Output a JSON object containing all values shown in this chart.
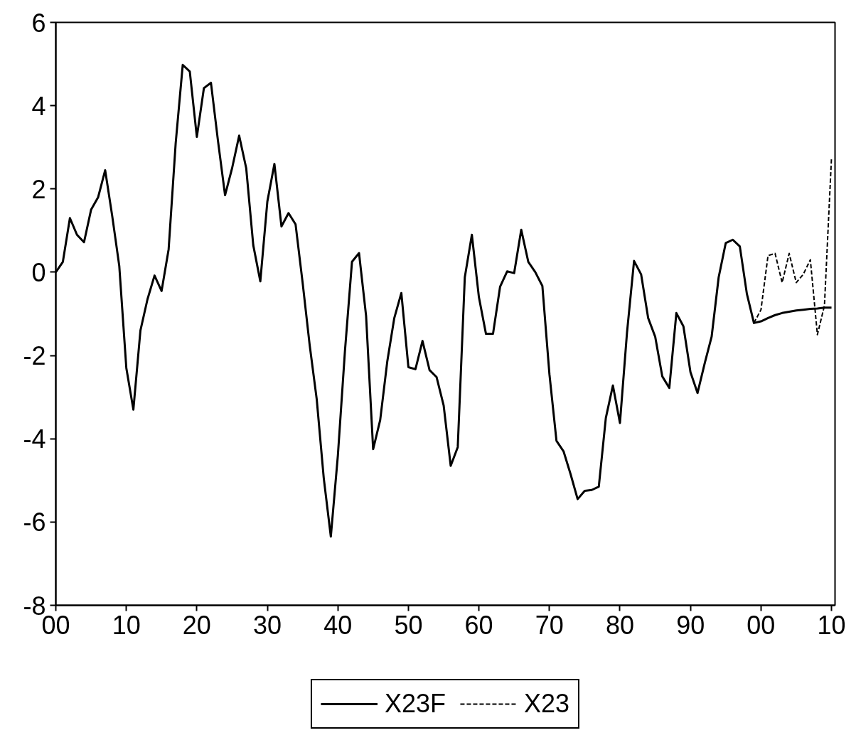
{
  "chart_data": {
    "type": "line",
    "x": [
      "1900",
      "1901",
      "1902",
      "1903",
      "1904",
      "1905",
      "1906",
      "1907",
      "1908",
      "1909",
      "1910",
      "1911",
      "1912",
      "1913",
      "1914",
      "1915",
      "1916",
      "1917",
      "1918",
      "1919",
      "1920",
      "1921",
      "1922",
      "1923",
      "1924",
      "1925",
      "1926",
      "1927",
      "1928",
      "1929",
      "1930",
      "1931",
      "1932",
      "1933",
      "1934",
      "1935",
      "1936",
      "1937",
      "1938",
      "1939",
      "1940",
      "1941",
      "1942",
      "1943",
      "1944",
      "1945",
      "1946",
      "1947",
      "1948",
      "1949",
      "1950",
      "1951",
      "1952",
      "1953",
      "1954",
      "1955",
      "1956",
      "1957",
      "1958",
      "1959",
      "1960",
      "1961",
      "1962",
      "1963",
      "1964",
      "1965",
      "1966",
      "1967",
      "1968",
      "1969",
      "1970",
      "1971",
      "1972",
      "1973",
      "1974",
      "1975",
      "1976",
      "1977",
      "1978",
      "1979",
      "1980",
      "1981",
      "1982",
      "1983",
      "1984",
      "1985",
      "1986",
      "1987",
      "1988",
      "1989",
      "1990",
      "1991",
      "1992",
      "1993",
      "1994",
      "1995",
      "1996",
      "1997",
      "1998",
      "1999",
      "2000",
      "2001",
      "2002",
      "2003",
      "2004",
      "2005",
      "2006",
      "2007",
      "2008",
      "2009",
      "2010"
    ],
    "series": [
      {
        "name": "X23F",
        "color": "#000000",
        "line_style": "solid",
        "values": [
          0.0,
          0.25,
          1.3,
          0.9,
          0.72,
          1.5,
          1.8,
          2.45,
          1.35,
          0.15,
          -2.3,
          -3.3,
          -1.4,
          -0.65,
          -0.08,
          -0.45,
          0.55,
          3.1,
          4.98,
          4.82,
          3.25,
          4.42,
          4.55,
          3.15,
          1.85,
          2.5,
          3.28,
          2.5,
          0.65,
          -0.22,
          1.7,
          2.6,
          1.1,
          1.42,
          1.15,
          -0.25,
          -1.75,
          -3.05,
          -4.95,
          -6.35,
          -4.4,
          -1.9,
          0.25,
          0.46,
          -1.05,
          -4.25,
          -3.55,
          -2.15,
          -1.1,
          -0.5,
          -2.28,
          -2.33,
          -1.65,
          -2.35,
          -2.52,
          -3.2,
          -4.65,
          -4.2,
          -0.12,
          0.9,
          -0.6,
          -1.48,
          -1.48,
          -0.35,
          0.02,
          -0.02,
          1.02,
          0.25,
          0.0,
          -0.33,
          -2.45,
          -4.05,
          -4.3,
          -4.85,
          -5.45,
          -5.25,
          -5.23,
          -5.15,
          -3.5,
          -2.72,
          -3.62,
          -1.45,
          0.27,
          -0.05,
          -1.1,
          -1.55,
          -2.5,
          -2.78,
          -0.98,
          -1.3,
          -2.4,
          -2.9,
          -2.2,
          -1.55,
          -0.12,
          0.7,
          0.78,
          0.62,
          -0.52,
          -1.22,
          -1.18,
          -1.1,
          -1.03,
          -0.98,
          -0.95,
          -0.92,
          -0.9,
          -0.88,
          -0.87,
          -0.85,
          -0.85
        ]
      },
      {
        "name": "X23",
        "color": "#000000",
        "line_style": "dashed",
        "x": [
          "1999",
          "2000",
          "2001",
          "2002",
          "2003",
          "2004",
          "2005",
          "2006",
          "2007",
          "2008",
          "2009",
          "2010"
        ],
        "values": [
          -1.22,
          -0.9,
          0.4,
          0.45,
          -0.25,
          0.45,
          -0.25,
          -0.05,
          0.3,
          -1.5,
          -0.8,
          2.75
        ]
      }
    ],
    "xlim": [
      "1900",
      "2010-07"
    ],
    "xticks": [
      {
        "value": "1900",
        "label": "00"
      },
      {
        "value": "1910",
        "label": "10"
      },
      {
        "value": "1920",
        "label": "20"
      },
      {
        "value": "1930",
        "label": "30"
      },
      {
        "value": "1940",
        "label": "40"
      },
      {
        "value": "1950",
        "label": "50"
      },
      {
        "value": "1960",
        "label": "60"
      },
      {
        "value": "1970",
        "label": "70"
      },
      {
        "value": "1980",
        "label": "80"
      },
      {
        "value": "1990",
        "label": "90"
      },
      {
        "value": "2000",
        "label": "00"
      },
      {
        "value": "2010",
        "label": "10"
      }
    ],
    "ylim": [
      -8,
      6
    ],
    "yticks": [
      -8,
      -6,
      -4,
      -2,
      0,
      2,
      4,
      6
    ],
    "grid": false,
    "legend": "bottom",
    "marker": "none"
  }
}
